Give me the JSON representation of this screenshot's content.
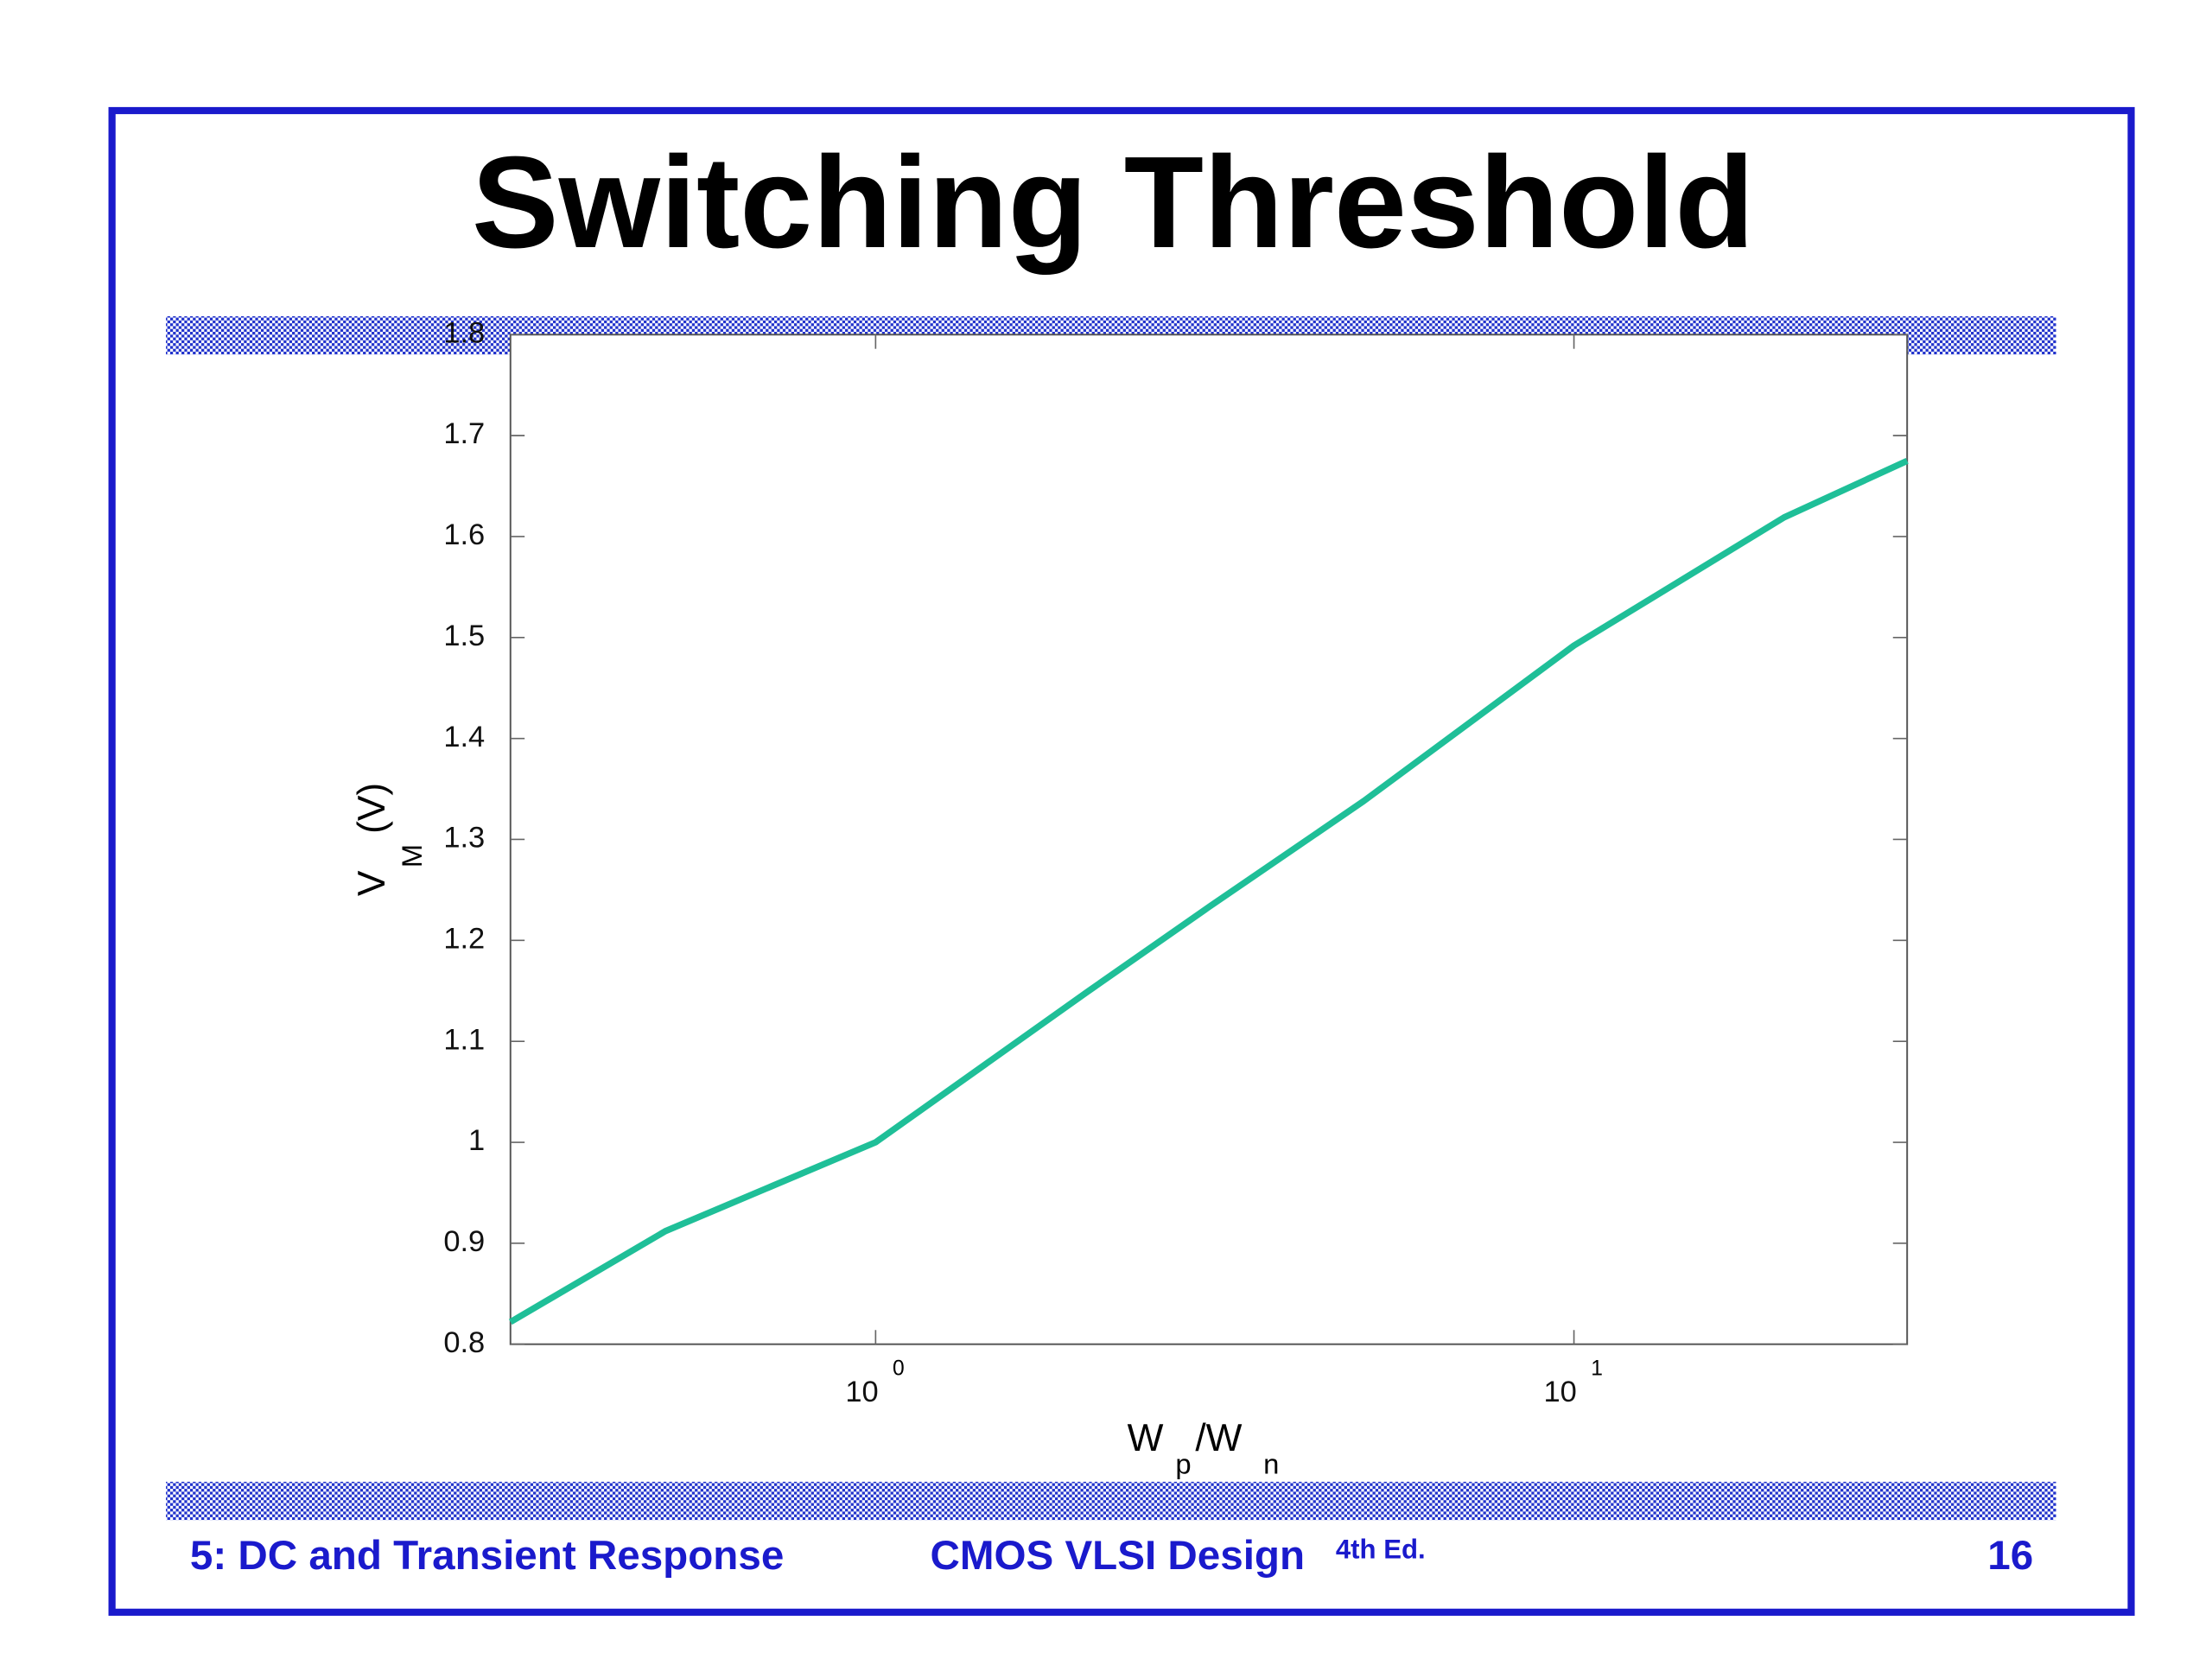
{
  "slide": {
    "title": "Switching Threshold",
    "footer_left": "5: DC and Transient Response",
    "footer_center": "CMOS VLSI Design",
    "footer_edition": "4th Ed.",
    "page_number": "16"
  },
  "chart_data": {
    "type": "line",
    "log_x": true,
    "xlabel": {
      "main": "W",
      "sub1": "p",
      "mid": "/W",
      "sub2": "n"
    },
    "ylabel": {
      "main": "V",
      "sub": "M",
      "unit": "(V)"
    },
    "x": [
      0.3,
      0.5,
      1,
      2,
      3,
      5,
      10,
      20,
      30
    ],
    "values": [
      0.822,
      0.912,
      1.0,
      1.148,
      1.233,
      1.338,
      1.492,
      1.619,
      1.675
    ],
    "color": "#1fbf98",
    "xlim": [
      0.3,
      30
    ],
    "ylim": [
      0.8,
      1.8
    ],
    "xticks": [
      {
        "value": 1,
        "label": "10",
        "exponent": "0"
      },
      {
        "value": 10,
        "label": "10",
        "exponent": "1"
      }
    ],
    "yticks": [
      0.8,
      0.9,
      1,
      1.1,
      1.2,
      1.3,
      1.4,
      1.5,
      1.6,
      1.7,
      1.8
    ]
  }
}
